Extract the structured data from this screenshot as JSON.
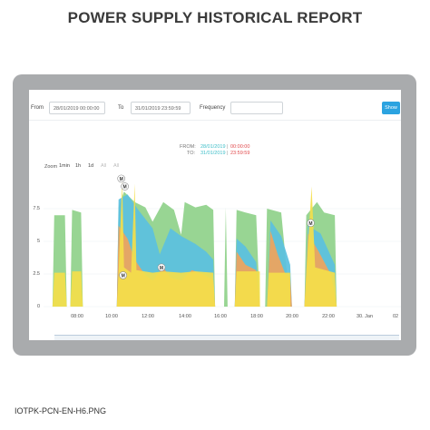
{
  "page": {
    "title": "POWER SUPPLY HISTORICAL REPORT",
    "filename": "IOTPK-PCN-EN-H6.PNG"
  },
  "form": {
    "from_label": "From",
    "from_value": "28/01/2019 00:00:00",
    "to_label": "To",
    "to_value": "31/01/2019 23:59:59",
    "frequency_label": "Frequency",
    "frequency_value": "",
    "show_label": "Show"
  },
  "range": {
    "from_label": "FROM:",
    "from_date": "28/01/2019",
    "from_sep": "|",
    "from_time": "00:00:00",
    "to_label": "TO:",
    "to_date": "31/01/2019",
    "to_sep": "|",
    "to_time": "23:59:59"
  },
  "zoom": {
    "label": "Zoom",
    "buttons": [
      "1min",
      "1h",
      "1d",
      "All",
      "All"
    ]
  },
  "colors": {
    "green": "#8fd18a",
    "blue": "#5bc0e0",
    "orange": "#f0a45c",
    "yellow": "#f4de4a",
    "accent": "#2ba3e0",
    "from_color": "#3fbfc9",
    "to_color": "#e0494b"
  },
  "chart_data": {
    "type": "area",
    "y_ticks": [
      "7.5",
      "5",
      "2.5",
      "0"
    ],
    "x_ticks": [
      "08:00",
      "10:00",
      "12:00",
      "14:00",
      "16:00",
      "18:00",
      "20:00",
      "22:00",
      "30. Jan",
      "02"
    ],
    "ylim": [
      0,
      10
    ],
    "xlim": [
      6.5,
      26.5
    ],
    "series": [
      {
        "color": "green",
        "points": [
          [
            7.0,
            0
          ],
          [
            7.1,
            7.0
          ],
          [
            7.7,
            7.0
          ],
          [
            7.8,
            0
          ],
          [
            8.0,
            0
          ],
          [
            8.1,
            7.4
          ],
          [
            8.6,
            7.2
          ],
          [
            8.7,
            0
          ],
          [
            10.6,
            0
          ],
          [
            10.7,
            7.6
          ],
          [
            11.0,
            8.8
          ],
          [
            11.6,
            8.0
          ],
          [
            12.2,
            7.6
          ],
          [
            12.6,
            6.5
          ],
          [
            13.2,
            8.0
          ],
          [
            13.8,
            7.4
          ],
          [
            14.2,
            5.5
          ],
          [
            14.4,
            8.0
          ],
          [
            15.0,
            7.6
          ],
          [
            15.6,
            7.8
          ],
          [
            16.0,
            7.4
          ],
          [
            16.1,
            0
          ],
          [
            16.6,
            0
          ],
          [
            16.7,
            7.6
          ],
          [
            16.8,
            0
          ],
          [
            17.2,
            0
          ],
          [
            17.3,
            7.4
          ],
          [
            17.8,
            7.2
          ],
          [
            18.4,
            7.0
          ],
          [
            18.6,
            0
          ],
          [
            18.9,
            0
          ],
          [
            19.0,
            7.5
          ],
          [
            19.8,
            7.2
          ],
          [
            20.3,
            0
          ],
          [
            21.1,
            0
          ],
          [
            21.2,
            7.0
          ],
          [
            21.8,
            8.0
          ],
          [
            22.2,
            7.2
          ],
          [
            22.8,
            7.0
          ],
          [
            22.9,
            0
          ],
          [
            26.5,
            0
          ]
        ]
      },
      {
        "color": "blue",
        "points": [
          [
            10.6,
            0
          ],
          [
            10.7,
            8.2
          ],
          [
            11.2,
            8.6
          ],
          [
            11.8,
            7.4
          ],
          [
            12.6,
            6.0
          ],
          [
            13.0,
            4.0
          ],
          [
            13.6,
            6.0
          ],
          [
            14.2,
            5.4
          ],
          [
            15.0,
            4.8
          ],
          [
            15.6,
            4.2
          ],
          [
            16.0,
            3.6
          ],
          [
            16.1,
            0
          ],
          [
            17.2,
            0
          ],
          [
            17.3,
            5.2
          ],
          [
            17.8,
            4.6
          ],
          [
            18.4,
            3.4
          ],
          [
            18.6,
            0
          ],
          [
            19.0,
            0
          ],
          [
            19.2,
            6.6
          ],
          [
            19.8,
            5.4
          ],
          [
            20.3,
            3.2
          ],
          [
            20.4,
            0
          ],
          [
            21.1,
            0
          ],
          [
            21.3,
            6.2
          ],
          [
            22.0,
            5.6
          ],
          [
            22.8,
            3.2
          ],
          [
            22.9,
            0
          ]
        ]
      },
      {
        "color": "orange",
        "points": [
          [
            10.6,
            0
          ],
          [
            10.7,
            6.2
          ],
          [
            11.2,
            5.2
          ],
          [
            11.6,
            3.6
          ],
          [
            12.2,
            2.4
          ],
          [
            12.6,
            2.0
          ],
          [
            13.2,
            3.0
          ],
          [
            13.6,
            2.2
          ],
          [
            14.2,
            2.0
          ],
          [
            14.8,
            2.8
          ],
          [
            15.2,
            2.6
          ],
          [
            15.8,
            2.2
          ],
          [
            16.0,
            2.0
          ],
          [
            16.1,
            0
          ],
          [
            17.2,
            0
          ],
          [
            17.3,
            4.2
          ],
          [
            17.8,
            3.2
          ],
          [
            18.4,
            2.8
          ],
          [
            18.6,
            0
          ],
          [
            19.0,
            0
          ],
          [
            19.2,
            5.8
          ],
          [
            19.6,
            4.0
          ],
          [
            20.0,
            2.6
          ],
          [
            20.3,
            2.2
          ],
          [
            20.4,
            0
          ],
          [
            21.1,
            0
          ],
          [
            21.3,
            5.6
          ],
          [
            21.9,
            4.2
          ],
          [
            22.6,
            2.4
          ],
          [
            22.9,
            0
          ]
        ]
      },
      {
        "color": "yellow",
        "points": [
          [
            7.0,
            0
          ],
          [
            7.1,
            2.6
          ],
          [
            7.7,
            2.6
          ],
          [
            7.8,
            0
          ],
          [
            8.0,
            0
          ],
          [
            8.1,
            2.7
          ],
          [
            8.6,
            2.7
          ],
          [
            8.7,
            0
          ],
          [
            10.6,
            0
          ],
          [
            10.7,
            2.6
          ],
          [
            10.9,
            9.6
          ],
          [
            11.0,
            3.0
          ],
          [
            11.4,
            2.6
          ],
          [
            11.6,
            9.4
          ],
          [
            11.7,
            2.8
          ],
          [
            12.6,
            2.6
          ],
          [
            13.2,
            2.7
          ],
          [
            14.2,
            2.6
          ],
          [
            15.0,
            2.7
          ],
          [
            16.0,
            2.6
          ],
          [
            16.1,
            0
          ],
          [
            17.2,
            0
          ],
          [
            17.3,
            2.7
          ],
          [
            18.6,
            2.7
          ],
          [
            18.61,
            0
          ],
          [
            19.0,
            0
          ],
          [
            19.1,
            2.6
          ],
          [
            20.3,
            2.6
          ],
          [
            20.31,
            0
          ],
          [
            21.1,
            0
          ],
          [
            21.2,
            2.6
          ],
          [
            21.5,
            9.2
          ],
          [
            21.7,
            3.0
          ],
          [
            22.8,
            2.6
          ],
          [
            22.9,
            0
          ]
        ]
      }
    ],
    "markers": [
      {
        "x": 10.85,
        "y": 9.8,
        "text": "M"
      },
      {
        "x": 11.05,
        "y": 9.2,
        "text": "M"
      },
      {
        "x": 10.95,
        "y": 2.4,
        "text": "M"
      },
      {
        "x": 13.1,
        "y": 3.0,
        "text": "M"
      },
      {
        "x": 21.45,
        "y": 6.4,
        "text": "M"
      }
    ]
  }
}
